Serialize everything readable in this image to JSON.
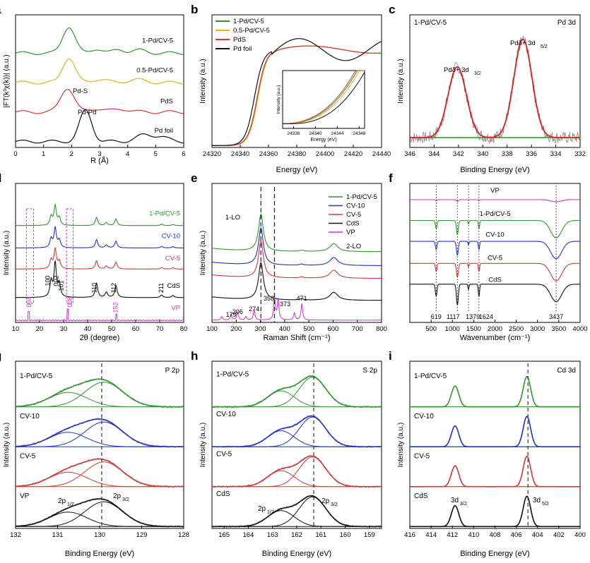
{
  "figure": {
    "description_free": true,
    "colors": {
      "green": "#2e9a2e",
      "yellow": "#e3b21f",
      "red": "#d23a3a",
      "black": "#111111",
      "blue": "#2233cc",
      "magenta": "#cc33cc",
      "gray": "#8a8a8a",
      "fit_red": "#e02020",
      "bg_green": "#2ea02e"
    }
  },
  "chart_data": [
    {
      "id": "a",
      "type": "line",
      "panel_label": "a",
      "xlabel": "R (Å)",
      "ylabel": "|FT(k³χ(k))| (a.u.)",
      "xlim": [
        0,
        6
      ],
      "xticks": [
        "0",
        "1",
        "2",
        "3",
        "4",
        "5",
        "6"
      ],
      "series": [
        {
          "name": "1-Pd/CV-5",
          "color": "#2e9a2e",
          "offset": 3.0,
          "peaks": [
            [
              1.9,
              0.9,
              0.22
            ],
            [
              2.9,
              0.15,
              0.2
            ],
            [
              3.7,
              0.12,
              0.2
            ],
            [
              4.4,
              0.1,
              0.25
            ]
          ]
        },
        {
          "name": "0.5-Pd/CV-5",
          "color": "#e3b21f",
          "offset": 2.0,
          "peaks": [
            [
              1.9,
              0.85,
              0.22
            ],
            [
              3.0,
              0.12,
              0.25
            ],
            [
              4.3,
              0.1,
              0.3
            ]
          ]
        },
        {
          "name": "PdS",
          "color": "#d23a3a",
          "offset": 1.0,
          "peaks": [
            [
              1.85,
              0.82,
              0.24
            ],
            [
              2.9,
              0.12,
              0.25
            ],
            [
              3.8,
              0.1,
              0.3
            ]
          ]
        },
        {
          "name": "Pd foil",
          "color": "#111111",
          "offset": 0.0,
          "peaks": [
            [
              2.5,
              1.05,
              0.22
            ],
            [
              4.6,
              0.22,
              0.3
            ],
            [
              5.2,
              0.15,
              0.25
            ]
          ]
        }
      ],
      "annotations": [
        "Pd-S",
        "Pd-Pd"
      ]
    },
    {
      "id": "b",
      "type": "line",
      "panel_label": "b",
      "xlabel": "Energy (eV)",
      "ylabel": "Intensity (a.u.)",
      "xlim": [
        24320,
        24440
      ],
      "xticks": [
        "24320",
        "24340",
        "24360",
        "24380",
        "24400",
        "24420",
        "24440"
      ],
      "legend": [
        "1-Pd/CV-5",
        "0.5-Pd/CV-5",
        "PdS",
        "Pd foil"
      ],
      "series": [
        {
          "name": "1-Pd/CV-5",
          "color": "#2e9a2e",
          "edge": 24352
        },
        {
          "name": "0.5-Pd/CV-5",
          "color": "#e3b21f",
          "edge": 24352.5
        },
        {
          "name": "PdS",
          "color": "#d23a3a",
          "edge": 24352
        },
        {
          "name": "Pd foil",
          "color": "#111111",
          "edge": 24350
        }
      ],
      "inset": {
        "ylabel": "Intensity (a.u.)",
        "xlabel": "Energy (eV)",
        "xticks": [
          "24336",
          "24340",
          "24344",
          "24348"
        ]
      }
    },
    {
      "id": "c",
      "type": "line",
      "panel_label": "c",
      "title_left": "1-Pd/CV-5",
      "title_right": "Pd 3d",
      "xlabel": "Binding Energy (eV)",
      "ylabel": "Intensity (a.u.)",
      "xlim": [
        346,
        332
      ],
      "xticks": [
        "346",
        "344",
        "342",
        "340",
        "338",
        "336",
        "334",
        "332"
      ],
      "peaks": [
        {
          "center": 342.1,
          "height": 0.72,
          "label": "Pdδ+ 3d3/2"
        },
        {
          "center": 336.7,
          "height": 1.0,
          "label": "Pdδ+ 3d5/2"
        }
      ]
    },
    {
      "id": "d",
      "type": "line",
      "panel_label": "d",
      "xlabel": "2θ (degree)",
      "ylabel": "Intensity (a.u.)",
      "xlim": [
        10,
        80
      ],
      "xticks": [
        "10",
        "20",
        "30",
        "40",
        "50",
        "60",
        "70",
        "80"
      ],
      "series": [
        {
          "name": "1-Pd/CV-5",
          "color": "#2e9a2e"
        },
        {
          "name": "CV-10",
          "color": "#2233cc"
        },
        {
          "name": "CV-5",
          "color": "#d23a3a"
        },
        {
          "name": "CdS",
          "color": "#111111"
        },
        {
          "name": "VP",
          "color": "#cc33cc"
        }
      ],
      "peak_labels": [
        "100",
        "002",
        "101",
        "110",
        "112",
        "211"
      ],
      "vp_labels": [
        "004",
        "008",
        "152"
      ]
    },
    {
      "id": "e",
      "type": "line",
      "panel_label": "e",
      "xlabel": "Raman Shift (cm⁻¹)",
      "ylabel": "Intensity (a.u.)",
      "xlim": [
        100,
        800
      ],
      "xticks": [
        "100",
        "200",
        "300",
        "400",
        "500",
        "600",
        "700",
        "800"
      ],
      "legend": [
        "1-Pd/CV-5",
        "CV-10",
        "CV-5",
        "CdS",
        "VP"
      ],
      "labels": {
        "lo1": "1-LO",
        "lo2": "2-LO"
      },
      "vp_peaks": [
        "179",
        "206",
        "274",
        "358",
        "373",
        "471"
      ]
    },
    {
      "id": "f",
      "type": "line",
      "panel_label": "f",
      "xlabel": "Wavenumber (cm⁻¹)",
      "ylabel": "",
      "xlim": [
        0,
        4000
      ],
      "xticks": [
        "500",
        "1000",
        "1500",
        "2000",
        "2500",
        "3000",
        "3500",
        "4000"
      ],
      "series": [
        {
          "name": "VP",
          "color": "#cc33cc"
        },
        {
          "name": "1-Pd/CV-5",
          "color": "#2e9a2e"
        },
        {
          "name": "CV-10",
          "color": "#2233cc"
        },
        {
          "name": "CV-5",
          "color": "#d23a3a"
        },
        {
          "name": "CdS",
          "color": "#111111"
        }
      ],
      "band_labels": [
        "619",
        "1117",
        "1379",
        "1624",
        "3437"
      ]
    },
    {
      "id": "g",
      "type": "line",
      "panel_label": "g",
      "title_right": "P 2p",
      "xlabel": "Binding Energy (eV)",
      "ylabel": "Intensity (a.u.)",
      "xlim": [
        132,
        128
      ],
      "xticks": [
        "132",
        "131",
        "130",
        "129",
        "128"
      ],
      "series": [
        {
          "name": "1-Pd/CV-5",
          "color": "#2e9a2e"
        },
        {
          "name": "CV-10",
          "color": "#2233cc"
        },
        {
          "name": "CV-5",
          "color": "#d23a3a"
        },
        {
          "name": "VP",
          "color": "#111111"
        }
      ],
      "peak_labels": [
        "2p1/2",
        "2p3/2"
      ]
    },
    {
      "id": "h",
      "type": "line",
      "panel_label": "h",
      "title_right": "S 2p",
      "xlabel": "Binding Energy (eV)",
      "ylabel": "Intensity (a.u.)",
      "xlim": [
        165.5,
        158.5
      ],
      "xticks": [
        "165",
        "164",
        "163",
        "162",
        "161",
        "160",
        "159"
      ],
      "series": [
        {
          "name": "1-Pd/CV-5",
          "color": "#2e9a2e"
        },
        {
          "name": "CV-10",
          "color": "#2233cc"
        },
        {
          "name": "CV-5",
          "color": "#d23a3a"
        },
        {
          "name": "CdS",
          "color": "#111111"
        }
      ],
      "peak_labels": [
        "2p1/2",
        "2p3/2"
      ]
    },
    {
      "id": "i",
      "type": "line",
      "panel_label": "i",
      "title_right": "Cd 3d",
      "xlabel": "Binding Energy (eV)",
      "ylabel": "Intensity (a.u.)",
      "xlim": [
        416,
        400
      ],
      "xticks": [
        "416",
        "414",
        "412",
        "410",
        "408",
        "406",
        "404",
        "402",
        "400"
      ],
      "series": [
        {
          "name": "1-Pd/CV-5",
          "color": "#2e9a2e"
        },
        {
          "name": "CV-10",
          "color": "#2233cc"
        },
        {
          "name": "CV-5",
          "color": "#d23a3a"
        },
        {
          "name": "CdS",
          "color": "#111111"
        }
      ],
      "peak_labels": [
        "3d3/2",
        "3d5/2"
      ]
    }
  ]
}
